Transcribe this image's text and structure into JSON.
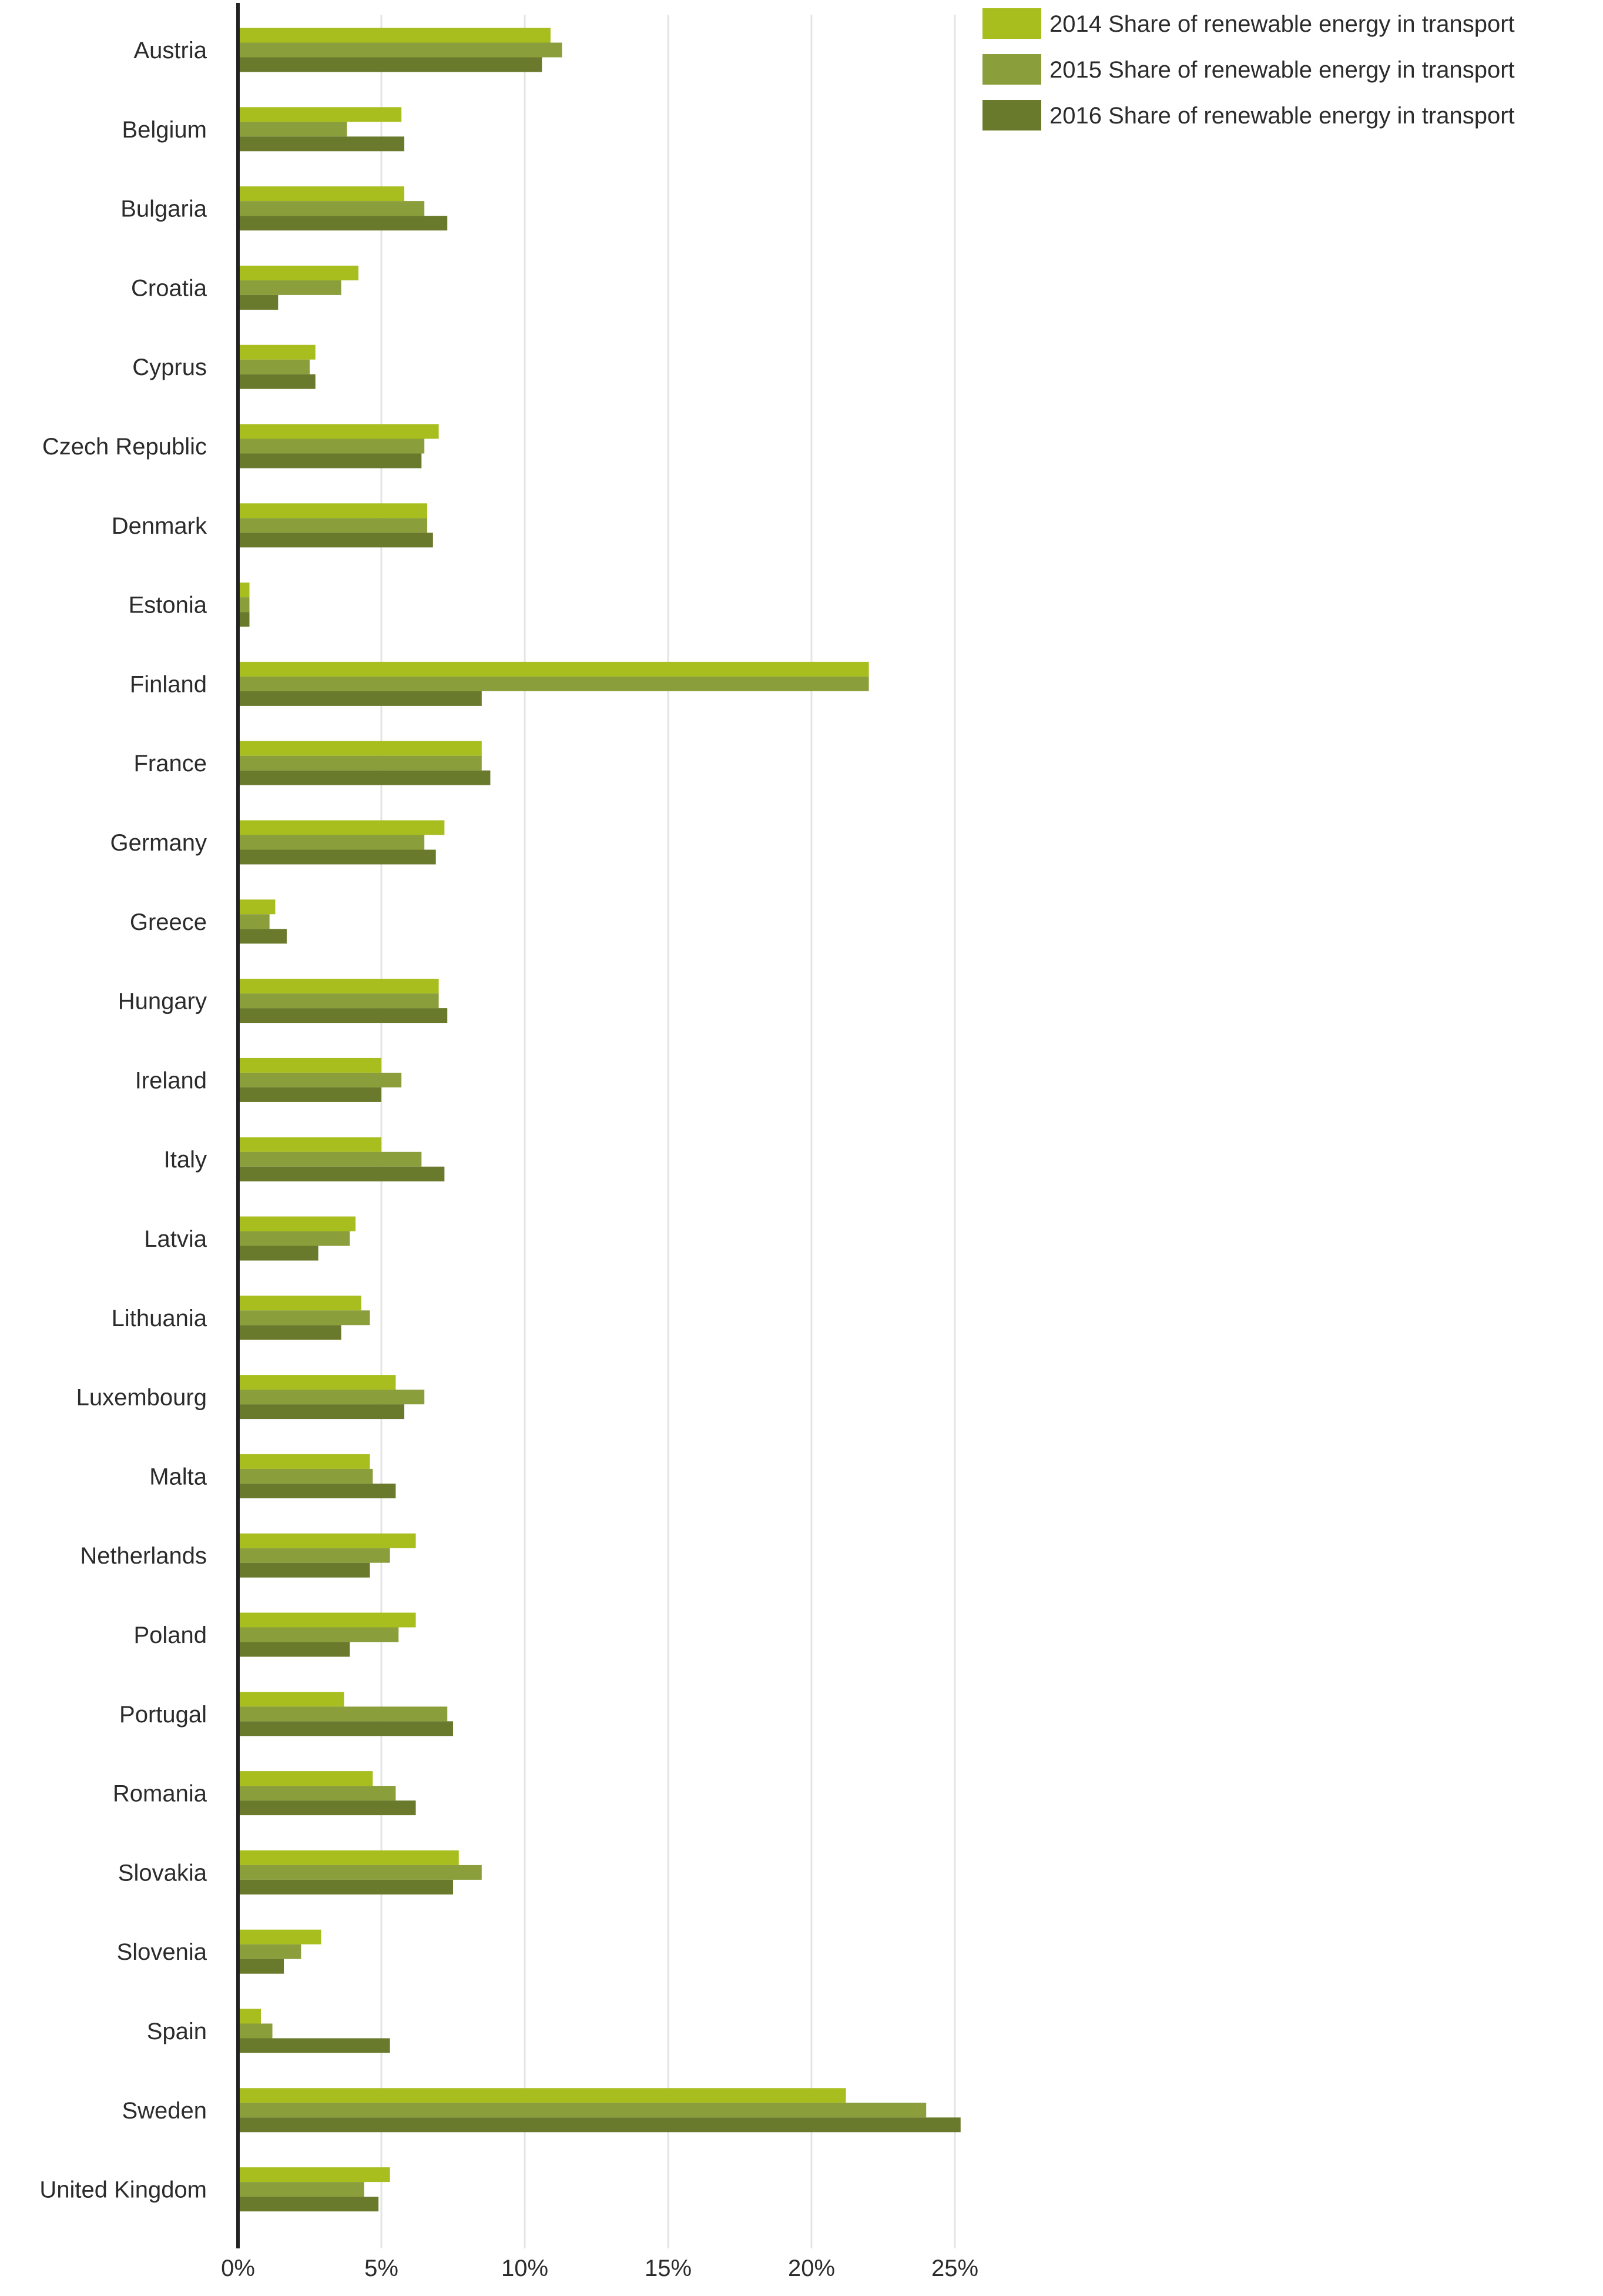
{
  "chart_data": {
    "type": "bar",
    "orientation": "horizontal",
    "categories": [
      "Austria",
      "Belgium",
      "Bulgaria",
      "Croatia",
      "Cyprus",
      "Czech Republic",
      "Denmark",
      "Estonia",
      "Finland",
      "France",
      "Germany",
      "Greece",
      "Hungary",
      "Ireland",
      "Italy",
      "Latvia",
      "Lithuania",
      "Luxembourg",
      "Malta",
      "Netherlands",
      "Poland",
      "Portugal",
      "Romania",
      "Slovakia",
      "Slovenia",
      "Spain",
      "Sweden",
      "United Kingdom"
    ],
    "series": [
      {
        "name": "2014 Share of renewable energy in transport",
        "color": "#a8be1f",
        "values": [
          10.9,
          5.7,
          5.8,
          4.2,
          2.7,
          7.0,
          6.6,
          0.4,
          22.0,
          8.5,
          7.2,
          1.3,
          7.0,
          5.0,
          5.0,
          4.1,
          4.3,
          5.5,
          4.6,
          6.2,
          6.2,
          3.7,
          4.7,
          7.7,
          2.9,
          0.8,
          21.2,
          5.3
        ]
      },
      {
        "name": "2015 Share of renewable energy in transport",
        "color": "#8a9f3b",
        "values": [
          11.3,
          3.8,
          6.5,
          3.6,
          2.5,
          6.5,
          6.6,
          0.4,
          22.0,
          8.5,
          6.5,
          1.1,
          7.0,
          5.7,
          6.4,
          3.9,
          4.6,
          6.5,
          4.7,
          5.3,
          5.6,
          7.3,
          5.5,
          8.5,
          2.2,
          1.2,
          24.0,
          4.4
        ]
      },
      {
        "name": "2016 Share of renewable energy in transport",
        "color": "#6a7a2c",
        "values": [
          10.6,
          5.8,
          7.3,
          1.4,
          2.7,
          6.4,
          6.8,
          0.4,
          8.5,
          8.8,
          6.9,
          1.7,
          7.3,
          5.0,
          7.2,
          2.8,
          3.6,
          5.8,
          5.5,
          4.6,
          3.9,
          7.5,
          6.2,
          7.5,
          1.6,
          5.3,
          25.2,
          4.9
        ]
      }
    ],
    "x_ticks": [
      "0%",
      "5%",
      "10%",
      "15%",
      "20%",
      "25%"
    ],
    "xlim": [
      0,
      25
    ],
    "grid": true,
    "legend_position": "top-right"
  }
}
